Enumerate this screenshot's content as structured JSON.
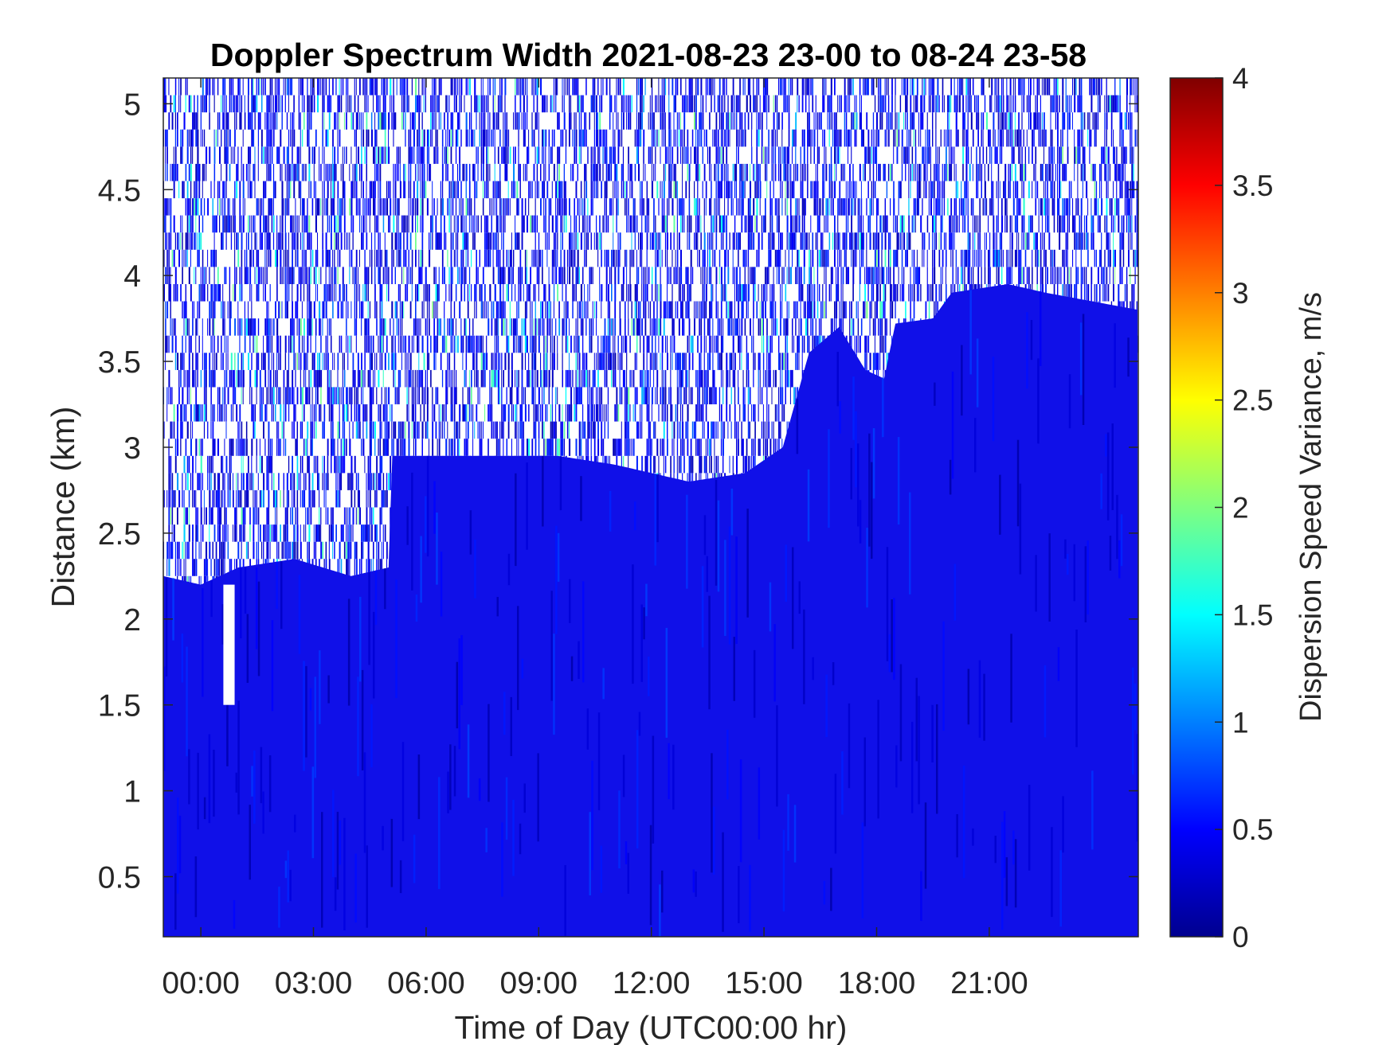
{
  "chart_data": {
    "type": "heatmap",
    "title": "Doppler Spectrum Width 2021-08-23 23-00 to 08-24 23-58",
    "xlabel": "Time of Day (UTC00:00 hr)",
    "ylabel": "Distance (km)",
    "colorbar_label": "Dispersion Speed Variance, m/s",
    "x_range_hours": [
      -1.0,
      24.97
    ],
    "y_range_km": [
      0.15,
      5.15
    ],
    "x_ticks": [
      {
        "value": 0,
        "label": "00:00"
      },
      {
        "value": 3,
        "label": "03:00"
      },
      {
        "value": 6,
        "label": "06:00"
      },
      {
        "value": 9,
        "label": "09:00"
      },
      {
        "value": 12,
        "label": "12:00"
      },
      {
        "value": 15,
        "label": "15:00"
      },
      {
        "value": 18,
        "label": "18:00"
      },
      {
        "value": 21,
        "label": "21:00"
      }
    ],
    "y_ticks": [
      {
        "value": 0.5,
        "label": "0.5"
      },
      {
        "value": 1,
        "label": "1"
      },
      {
        "value": 1.5,
        "label": "1.5"
      },
      {
        "value": 2,
        "label": "2"
      },
      {
        "value": 2.5,
        "label": "2.5"
      },
      {
        "value": 3,
        "label": "3"
      },
      {
        "value": 3.5,
        "label": "3.5"
      },
      {
        "value": 4,
        "label": "4"
      },
      {
        "value": 4.5,
        "label": "4.5"
      },
      {
        "value": 5,
        "label": "5"
      }
    ],
    "colorbar": {
      "colormap": "jet",
      "range": [
        0,
        4
      ],
      "ticks": [
        {
          "value": 0,
          "label": "0"
        },
        {
          "value": 0.5,
          "label": "0.5"
        },
        {
          "value": 1,
          "label": "1"
        },
        {
          "value": 1.5,
          "label": "1.5"
        },
        {
          "value": 2,
          "label": "2"
        },
        {
          "value": 2.5,
          "label": "2.5"
        },
        {
          "value": 3,
          "label": "3"
        },
        {
          "value": 3.5,
          "label": "3.5"
        },
        {
          "value": 4,
          "label": "4"
        }
      ]
    },
    "signal_top_km": [
      {
        "t": -1.0,
        "km": 2.25
      },
      {
        "t": 0.0,
        "km": 2.2
      },
      {
        "t": 1.0,
        "km": 2.3
      },
      {
        "t": 2.5,
        "km": 2.35
      },
      {
        "t": 4.0,
        "km": 2.25
      },
      {
        "t": 5.0,
        "km": 2.3
      },
      {
        "t": 5.1,
        "km": 2.95
      },
      {
        "t": 8.0,
        "km": 2.95
      },
      {
        "t": 9.5,
        "km": 2.95
      },
      {
        "t": 11.0,
        "km": 2.9
      },
      {
        "t": 13.0,
        "km": 2.8
      },
      {
        "t": 14.5,
        "km": 2.85
      },
      {
        "t": 15.5,
        "km": 3.0
      },
      {
        "t": 16.2,
        "km": 3.55
      },
      {
        "t": 17.0,
        "km": 3.7
      },
      {
        "t": 17.7,
        "km": 3.45
      },
      {
        "t": 18.2,
        "km": 3.4
      },
      {
        "t": 18.5,
        "km": 3.72
      },
      {
        "t": 19.5,
        "km": 3.75
      },
      {
        "t": 20.0,
        "km": 3.9
      },
      {
        "t": 21.5,
        "km": 3.95
      },
      {
        "t": 22.5,
        "km": 3.9
      },
      {
        "t": 24.97,
        "km": 3.8
      }
    ],
    "signal_gap": {
      "t_range": [
        0.6,
        0.9
      ],
      "km_range": [
        1.5,
        2.2
      ]
    },
    "typical_value_in_signal": 0.45,
    "typical_value_above_signal": 0.6,
    "background_above_signal": "sparse noise with white (no data) gaps"
  }
}
